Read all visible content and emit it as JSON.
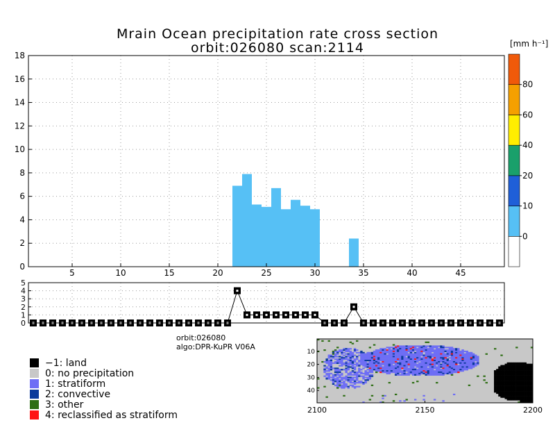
{
  "title_line1": "Mrain Ocean precipitation rate cross section",
  "title_line2": "orbit:026080     scan:2114",
  "info_orbit": "orbit:026080",
  "info_algo": "algo:DPR-KuPR V06A",
  "colorbar": {
    "unit_label": "[mm h⁻¹]",
    "tick_labels": [
      "0",
      "10",
      "20",
      "40",
      "60",
      "80"
    ],
    "colors": [
      "#ffffff",
      "#56c0f5",
      "#1f5fd8",
      "#1aa06b",
      "#ffee00",
      "#f5a000",
      "#f05a0a"
    ]
  },
  "chart_data": [
    {
      "type": "bar",
      "name": "precipitation-cross-section",
      "x": [
        22,
        23,
        24,
        25,
        26,
        27,
        28,
        29,
        30,
        34
      ],
      "bars": [
        {
          "x": 22,
          "bottom": 0,
          "top": 6.9,
          "color": "#56c0f5"
        },
        {
          "x": 23,
          "bottom": 0,
          "top": 7.9,
          "color": "#56c0f5"
        },
        {
          "x": 24,
          "bottom": 0,
          "top": 5.3,
          "color": "#56c0f5"
        },
        {
          "x": 25,
          "bottom": 0,
          "top": 5.1,
          "color": "#56c0f5"
        },
        {
          "x": 26,
          "bottom": 0,
          "top": 6.7,
          "color": "#56c0f5"
        },
        {
          "x": 27,
          "bottom": 0,
          "top": 4.9,
          "color": "#56c0f5"
        },
        {
          "x": 28,
          "bottom": 0,
          "top": 5.7,
          "color": "#56c0f5"
        },
        {
          "x": 29,
          "bottom": 0,
          "top": 5.2,
          "color": "#56c0f5"
        },
        {
          "x": 30,
          "bottom": 0,
          "top": 4.9,
          "color": "#56c0f5"
        },
        {
          "x": 34,
          "bottom": 0,
          "top": 2.4,
          "color": "#56c0f5"
        }
      ],
      "xlim": [
        0.5,
        49.5
      ],
      "ylim": [
        0,
        18
      ],
      "xticks": [
        5,
        10,
        15,
        20,
        25,
        30,
        35,
        40,
        45
      ],
      "yticks": [
        0,
        2,
        4,
        6,
        8,
        10,
        12,
        14,
        16,
        18
      ],
      "grid": true
    },
    {
      "type": "line",
      "name": "precipitation-type-flag",
      "x": [
        1,
        2,
        3,
        4,
        5,
        6,
        7,
        8,
        9,
        10,
        11,
        12,
        13,
        14,
        15,
        16,
        17,
        18,
        19,
        20,
        21,
        22,
        23,
        24,
        25,
        26,
        27,
        28,
        29,
        30,
        31,
        32,
        33,
        34,
        35,
        36,
        37,
        38,
        39,
        40,
        41,
        42,
        43,
        44,
        45,
        46,
        47,
        48,
        49
      ],
      "values": [
        0,
        0,
        0,
        0,
        0,
        0,
        0,
        0,
        0,
        0,
        0,
        0,
        0,
        0,
        0,
        0,
        0,
        0,
        0,
        0,
        0,
        4,
        1,
        1,
        1,
        1,
        1,
        1,
        1,
        1,
        0,
        0,
        0,
        2,
        0,
        0,
        0,
        0,
        0,
        0,
        0,
        0,
        0,
        0,
        0,
        0,
        0,
        0,
        0
      ],
      "xlim": [
        0.5,
        49.5
      ],
      "ylim": [
        0,
        5
      ],
      "yticks": [
        0,
        1,
        2,
        3,
        4,
        5
      ],
      "grid": true
    },
    {
      "type": "heatmap",
      "name": "precipitation-type-map",
      "xlim": [
        2100,
        2200
      ],
      "ylim": [
        49,
        1
      ],
      "xticks": [
        2100,
        2150,
        2200
      ],
      "yticks": [
        10,
        20,
        30,
        40
      ]
    }
  ],
  "legend": [
    {
      "label": "−1: land",
      "color": "#000000"
    },
    {
      "label": "0: no precipitation",
      "color": "#c8c8c8"
    },
    {
      "label": "1: stratiform",
      "color": "#6e6ef5"
    },
    {
      "label": "2: convective",
      "color": "#0a3a9a"
    },
    {
      "label": "3: other",
      "color": "#2e6e14"
    },
    {
      "label": "4: reclassified as stratiform",
      "color": "#ff1414"
    }
  ]
}
